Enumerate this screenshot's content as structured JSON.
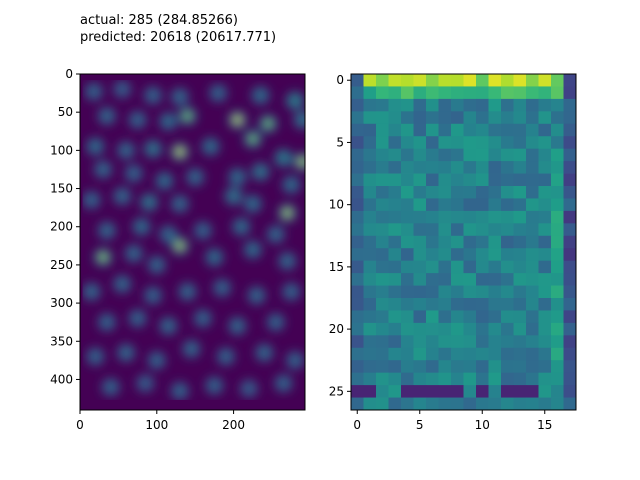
{
  "title_lines": {
    "actual": "actual: 285 (284.85266)",
    "predicted": "predicted: 20618 (20617.771)"
  },
  "chart_data": [
    {
      "type": "heatmap",
      "title": "",
      "xlabel": "",
      "ylabel": "",
      "xlim": [
        0,
        293
      ],
      "ylim": [
        440,
        0
      ],
      "xticks": [
        0,
        100,
        200
      ],
      "yticks": [
        0,
        50,
        100,
        150,
        200,
        250,
        300,
        350,
        400
      ],
      "colormap": "viridis",
      "hotspots": [
        [
          18,
          23,
          0.5
        ],
        [
          55,
          20,
          0.45
        ],
        [
          95,
          28,
          0.5
        ],
        [
          130,
          30,
          0.55
        ],
        [
          180,
          25,
          0.5
        ],
        [
          235,
          28,
          0.6
        ],
        [
          280,
          35,
          0.8
        ],
        [
          35,
          55,
          0.55
        ],
        [
          75,
          60,
          0.5
        ],
        [
          115,
          62,
          0.6
        ],
        [
          140,
          55,
          0.85
        ],
        [
          205,
          60,
          1.0
        ],
        [
          245,
          65,
          0.85
        ],
        [
          290,
          60,
          0.7
        ],
        [
          20,
          95,
          0.6
        ],
        [
          60,
          100,
          0.55
        ],
        [
          95,
          98,
          0.7
        ],
        [
          130,
          102,
          1.0
        ],
        [
          170,
          95,
          0.6
        ],
        [
          225,
          85,
          0.85
        ],
        [
          265,
          110,
          0.75
        ],
        [
          290,
          115,
          0.95
        ],
        [
          30,
          125,
          0.55
        ],
        [
          70,
          130,
          0.5
        ],
        [
          110,
          140,
          0.6
        ],
        [
          150,
          135,
          0.55
        ],
        [
          205,
          135,
          0.6
        ],
        [
          235,
          128,
          0.7
        ],
        [
          275,
          145,
          0.6
        ],
        [
          15,
          165,
          0.5
        ],
        [
          55,
          160,
          0.55
        ],
        [
          90,
          168,
          0.7
        ],
        [
          130,
          170,
          0.55
        ],
        [
          200,
          160,
          0.7
        ],
        [
          225,
          170,
          0.6
        ],
        [
          270,
          182,
          0.95
        ],
        [
          35,
          205,
          0.55
        ],
        [
          80,
          200,
          0.6
        ],
        [
          115,
          210,
          0.55
        ],
        [
          160,
          205,
          0.5
        ],
        [
          210,
          200,
          0.6
        ],
        [
          255,
          210,
          0.55
        ],
        [
          30,
          240,
          0.9
        ],
        [
          70,
          235,
          0.55
        ],
        [
          100,
          250,
          0.55
        ],
        [
          130,
          225,
          0.95
        ],
        [
          175,
          240,
          0.6
        ],
        [
          225,
          230,
          0.6
        ],
        [
          270,
          245,
          0.55
        ],
        [
          15,
          285,
          0.55
        ],
        [
          55,
          275,
          0.55
        ],
        [
          95,
          290,
          0.5
        ],
        [
          140,
          285,
          0.55
        ],
        [
          185,
          280,
          0.5
        ],
        [
          230,
          290,
          0.55
        ],
        [
          275,
          285,
          0.5
        ],
        [
          35,
          325,
          0.5
        ],
        [
          75,
          320,
          0.5
        ],
        [
          115,
          330,
          0.55
        ],
        [
          160,
          320,
          0.5
        ],
        [
          205,
          330,
          0.55
        ],
        [
          255,
          325,
          0.5
        ],
        [
          20,
          370,
          0.5
        ],
        [
          60,
          365,
          0.55
        ],
        [
          100,
          375,
          0.5
        ],
        [
          145,
          360,
          0.55
        ],
        [
          190,
          370,
          0.5
        ],
        [
          240,
          365,
          0.55
        ],
        [
          280,
          375,
          0.5
        ],
        [
          40,
          410,
          0.5
        ],
        [
          85,
          405,
          0.45
        ],
        [
          130,
          415,
          0.5
        ],
        [
          175,
          408,
          0.5
        ],
        [
          220,
          412,
          0.45
        ],
        [
          265,
          405,
          0.5
        ]
      ]
    },
    {
      "type": "heatmap",
      "title": "",
      "xlabel": "",
      "ylabel": "",
      "xlim": [
        -0.5,
        17.5
      ],
      "ylim": [
        26.5,
        -0.5
      ],
      "xticks": [
        0,
        5,
        10,
        15
      ],
      "yticks": [
        0,
        5,
        10,
        15,
        20,
        25
      ],
      "colormap": "viridis",
      "rows": 27,
      "cols": 18,
      "grid_seed": 7
    }
  ]
}
